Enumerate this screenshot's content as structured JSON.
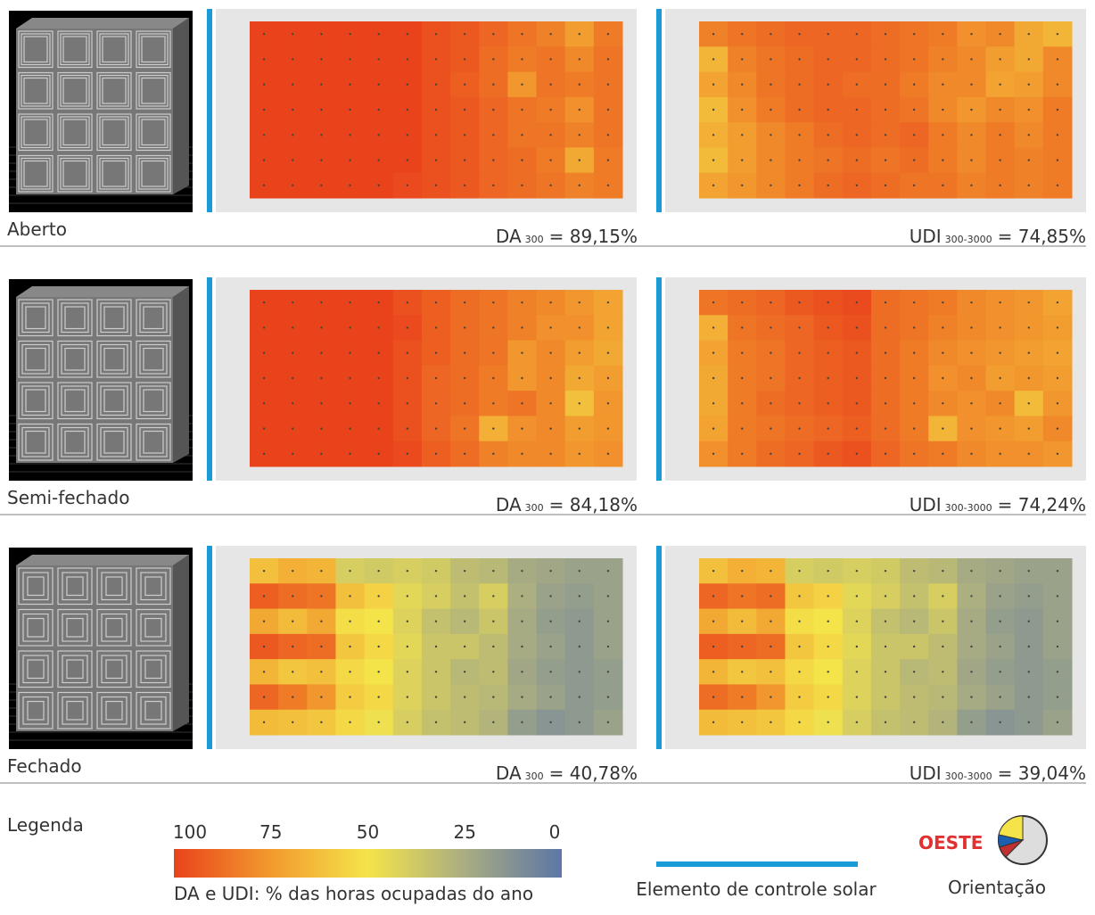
{
  "panels": [
    {
      "label": "Aberto",
      "da": {
        "metric": "DA",
        "sub": "300",
        "result": "= 89,15%",
        "grid": [
          [
            100,
            100,
            100,
            100,
            100,
            100,
            96,
            94,
            90,
            86,
            82,
            74,
            84
          ],
          [
            100,
            100,
            100,
            100,
            100,
            100,
            96,
            94,
            88,
            84,
            86,
            80,
            86
          ],
          [
            100,
            100,
            100,
            100,
            100,
            100,
            96,
            92,
            88,
            76,
            86,
            84,
            86
          ],
          [
            100,
            100,
            100,
            100,
            100,
            100,
            96,
            94,
            90,
            86,
            84,
            78,
            86
          ],
          [
            100,
            100,
            100,
            100,
            100,
            100,
            96,
            94,
            90,
            86,
            86,
            82,
            86
          ],
          [
            100,
            100,
            100,
            100,
            100,
            100,
            96,
            94,
            90,
            88,
            84,
            70,
            84
          ],
          [
            100,
            100,
            100,
            100,
            100,
            98,
            96,
            94,
            90,
            88,
            86,
            82,
            84
          ]
        ]
      },
      "udi": {
        "metric": "UDI",
        "sub": "300-3000",
        "result": "= 74,85%",
        "grid": [
          [
            82,
            86,
            88,
            90,
            90,
            90,
            88,
            86,
            84,
            78,
            80,
            70,
            66
          ],
          [
            66,
            82,
            86,
            88,
            90,
            90,
            88,
            86,
            82,
            80,
            74,
            70,
            80
          ],
          [
            72,
            80,
            86,
            88,
            90,
            88,
            88,
            84,
            80,
            80,
            72,
            74,
            80
          ],
          [
            64,
            78,
            84,
            88,
            90,
            90,
            88,
            86,
            80,
            76,
            80,
            78,
            84
          ],
          [
            68,
            74,
            80,
            84,
            88,
            90,
            88,
            90,
            84,
            80,
            84,
            80,
            84
          ],
          [
            64,
            74,
            80,
            84,
            86,
            88,
            86,
            88,
            84,
            80,
            84,
            82,
            84
          ],
          [
            72,
            76,
            80,
            84,
            88,
            90,
            88,
            86,
            86,
            82,
            84,
            82,
            84
          ]
        ]
      }
    },
    {
      "label": "Semi-fechado",
      "da": {
        "metric": "DA",
        "sub": "300",
        "result": "= 84,18%",
        "grid": [
          [
            100,
            100,
            100,
            100,
            100,
            96,
            92,
            88,
            86,
            82,
            80,
            76,
            72
          ],
          [
            100,
            100,
            100,
            100,
            100,
            98,
            92,
            88,
            86,
            82,
            78,
            78,
            72
          ],
          [
            100,
            100,
            100,
            100,
            100,
            96,
            92,
            88,
            86,
            76,
            80,
            74,
            70
          ],
          [
            100,
            100,
            100,
            100,
            100,
            96,
            90,
            88,
            84,
            76,
            80,
            70,
            74
          ],
          [
            100,
            100,
            100,
            100,
            100,
            96,
            90,
            88,
            84,
            86,
            80,
            62,
            76
          ],
          [
            100,
            100,
            100,
            100,
            100,
            96,
            90,
            86,
            68,
            78,
            80,
            74,
            76
          ],
          [
            100,
            100,
            100,
            100,
            100,
            98,
            92,
            88,
            82,
            80,
            80,
            76,
            78
          ]
        ]
      },
      "udi": {
        "metric": "UDI",
        "sub": "300-3000",
        "result": "= 74,24%",
        "grid": [
          [
            86,
            88,
            90,
            94,
            96,
            98,
            88,
            86,
            84,
            80,
            78,
            76,
            72
          ],
          [
            68,
            86,
            88,
            90,
            94,
            96,
            88,
            86,
            82,
            80,
            78,
            76,
            74
          ],
          [
            72,
            84,
            86,
            90,
            92,
            94,
            88,
            84,
            80,
            78,
            76,
            74,
            72
          ],
          [
            70,
            84,
            86,
            90,
            92,
            94,
            88,
            84,
            78,
            80,
            74,
            76,
            74
          ],
          [
            70,
            84,
            88,
            90,
            92,
            94,
            88,
            84,
            80,
            78,
            80,
            64,
            76
          ],
          [
            72,
            84,
            86,
            88,
            90,
            92,
            88,
            84,
            66,
            78,
            76,
            74,
            80
          ],
          [
            78,
            84,
            88,
            90,
            94,
            96,
            90,
            86,
            84,
            80,
            78,
            78,
            76
          ]
        ]
      }
    },
    {
      "label": "Fechado",
      "da": {
        "metric": "DA",
        "sub": "300",
        "result": "= 40,78%",
        "grid": [
          [
            62,
            68,
            66,
            40,
            38,
            40,
            38,
            32,
            30,
            24,
            22,
            20,
            20
          ],
          [
            92,
            88,
            86,
            62,
            56,
            44,
            40,
            34,
            40,
            26,
            20,
            18,
            20
          ],
          [
            70,
            64,
            70,
            52,
            50,
            42,
            34,
            30,
            36,
            24,
            18,
            16,
            20
          ],
          [
            94,
            90,
            88,
            60,
            54,
            44,
            36,
            36,
            32,
            24,
            20,
            16,
            20
          ],
          [
            66,
            60,
            62,
            54,
            50,
            42,
            36,
            30,
            32,
            22,
            18,
            16,
            18
          ],
          [
            90,
            84,
            76,
            58,
            54,
            42,
            36,
            32,
            30,
            24,
            20,
            16,
            18
          ],
          [
            64,
            62,
            60,
            54,
            48,
            40,
            34,
            32,
            28,
            18,
            14,
            16,
            20
          ]
        ]
      },
      "udi": {
        "metric": "UDI",
        "sub": "300-3000",
        "result": "= 39,04%",
        "grid": [
          [
            62,
            68,
            66,
            40,
            38,
            40,
            38,
            32,
            30,
            24,
            22,
            20,
            20
          ],
          [
            90,
            86,
            88,
            60,
            56,
            44,
            40,
            34,
            40,
            26,
            20,
            18,
            20
          ],
          [
            70,
            64,
            70,
            52,
            50,
            42,
            34,
            30,
            36,
            24,
            18,
            16,
            20
          ],
          [
            92,
            90,
            88,
            60,
            54,
            44,
            36,
            36,
            32,
            24,
            20,
            16,
            20
          ],
          [
            66,
            60,
            62,
            54,
            50,
            42,
            36,
            30,
            32,
            22,
            18,
            16,
            18
          ],
          [
            88,
            84,
            76,
            58,
            54,
            42,
            36,
            32,
            30,
            24,
            20,
            16,
            18
          ],
          [
            64,
            62,
            60,
            54,
            48,
            40,
            34,
            32,
            28,
            18,
            14,
            16,
            20
          ]
        ]
      }
    }
  ],
  "legend": {
    "title": "Legenda",
    "ticks": [
      100,
      75,
      50,
      25,
      0
    ],
    "colors": [
      "#e9431b",
      "#f29a2e",
      "#f4e44a",
      "#a9ad82",
      "#5d76a6"
    ],
    "caption": "DA e UDI: % das horas ocupadas do ano",
    "element": "Elemento de controle solar",
    "element_color": "#1a9ad6",
    "direction": "OESTE",
    "orientation": "Orientação"
  }
}
